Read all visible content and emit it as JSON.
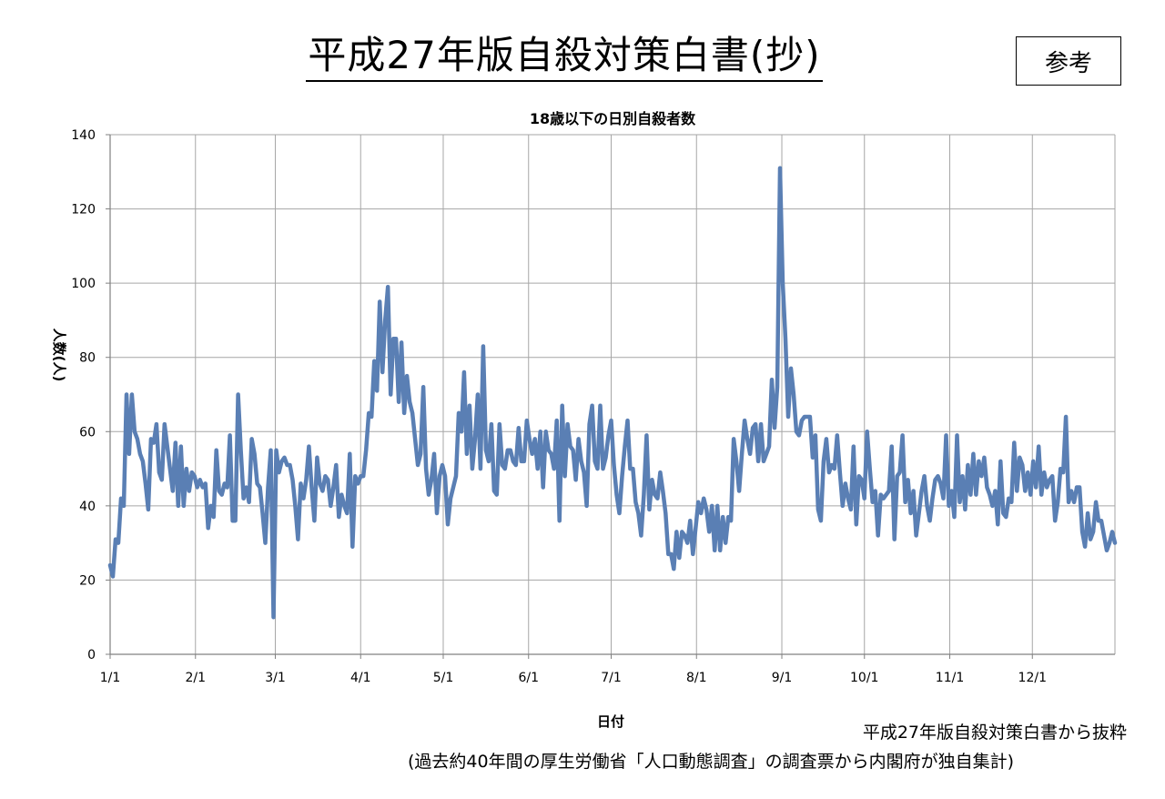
{
  "page": {
    "title": "平成27年版自殺対策白書(抄)",
    "badge": "参考",
    "source": "平成27年版自殺対策白書から抜粋",
    "note": "(過去約40年間の厚生労働省「人口動態調査」の調査票から内閣府が独自集計)"
  },
  "colors": {
    "line": "#5a7fb4",
    "grid": "#a6a6a6",
    "axis": "#808080"
  },
  "chart_data": {
    "type": "line",
    "title": "18歳以下の日別自殺者数",
    "xlabel": "日付",
    "ylabel": "人数(人)",
    "ylim": [
      0,
      140
    ],
    "xlim": [
      0,
      365
    ],
    "yticks": [
      0,
      20,
      40,
      60,
      80,
      100,
      120,
      140
    ],
    "xticks": [
      {
        "label": "1/1",
        "day": 0
      },
      {
        "label": "2/1",
        "day": 31
      },
      {
        "label": "3/1",
        "day": 60
      },
      {
        "label": "4/1",
        "day": 91
      },
      {
        "label": "5/1",
        "day": 121
      },
      {
        "label": "6/1",
        "day": 152
      },
      {
        "label": "7/1",
        "day": 182
      },
      {
        "label": "8/1",
        "day": 213
      },
      {
        "label": "9/1",
        "day": 244
      },
      {
        "label": "10/1",
        "day": 274
      },
      {
        "label": "11/1",
        "day": 305
      },
      {
        "label": "12/1",
        "day": 335
      }
    ],
    "grid": true,
    "legend": "none",
    "series": [
      {
        "values": [
          24,
          21,
          31,
          30,
          42,
          40,
          70,
          54,
          70,
          60,
          58,
          54,
          52,
          46,
          39,
          58,
          57,
          62,
          49,
          47,
          62,
          56,
          50,
          44,
          57,
          40,
          56,
          40,
          50,
          44,
          49,
          48,
          45,
          47,
          45,
          46,
          34,
          40,
          37,
          55,
          44,
          43,
          46,
          45,
          59,
          36,
          36,
          70,
          55,
          42,
          45,
          41,
          58,
          54,
          46,
          45,
          38,
          30,
          45,
          55,
          10,
          55,
          49,
          52,
          53,
          51,
          51,
          47,
          40,
          31,
          46,
          42,
          47,
          56,
          45,
          36,
          53,
          46,
          44,
          48,
          47,
          40,
          45,
          51,
          37,
          43,
          40,
          38,
          54,
          29,
          48,
          46,
          48,
          48,
          55,
          65,
          64,
          79,
          71,
          95,
          76,
          90,
          99,
          70,
          85,
          85,
          68,
          84,
          65,
          75,
          68,
          65,
          58,
          51,
          54,
          72,
          50,
          43,
          47,
          54,
          38,
          48,
          51,
          48,
          35,
          42,
          45,
          48,
          65,
          60,
          76,
          54,
          67,
          50,
          58,
          70,
          50,
          83,
          55,
          52,
          62,
          44,
          43,
          62,
          51,
          50,
          55,
          55,
          52,
          51,
          61,
          52,
          52,
          63,
          58,
          54,
          58,
          50,
          60,
          45,
          60,
          55,
          54,
          50,
          63,
          36,
          67,
          48,
          62,
          56,
          55,
          47,
          58,
          52,
          49,
          40,
          62,
          67,
          52,
          50,
          67,
          50,
          53,
          59,
          63,
          51,
          43,
          38,
          48,
          56,
          63,
          50,
          50,
          41,
          38,
          32,
          43,
          59,
          39,
          47,
          43,
          42,
          49,
          44,
          38,
          27,
          27,
          23,
          33,
          26,
          33,
          32,
          30,
          36,
          27,
          34,
          41,
          38,
          42,
          39,
          33,
          40,
          28,
          40,
          28,
          37,
          30,
          37,
          36,
          58,
          52,
          44,
          54,
          63,
          58,
          54,
          61,
          62,
          52,
          62,
          52,
          54,
          56,
          74,
          61,
          72,
          131,
          100,
          85,
          64,
          77,
          70,
          60,
          59,
          63,
          64,
          64,
          64,
          53,
          59,
          39,
          36,
          52,
          58,
          49,
          51,
          50,
          59,
          49,
          40,
          46,
          42,
          39,
          56,
          35,
          48,
          47,
          42,
          60,
          50,
          41,
          44,
          32,
          43,
          42,
          43,
          44,
          56,
          31,
          48,
          49,
          59,
          41,
          47,
          38,
          44,
          32,
          38,
          44,
          48,
          40,
          36,
          42,
          47,
          48,
          46,
          42,
          59,
          40,
          44,
          37,
          59,
          41,
          48,
          39,
          51,
          43,
          54,
          43,
          52,
          48,
          53,
          45,
          43,
          40,
          44,
          35,
          52,
          38,
          37,
          42,
          41,
          57,
          44,
          53,
          51,
          44,
          49,
          43,
          52,
          45,
          56,
          43,
          49,
          45,
          47,
          48,
          36,
          41,
          50,
          49,
          64,
          41,
          44,
          41,
          45,
          45,
          33,
          29,
          38,
          31,
          33,
          41,
          36,
          36,
          32,
          28,
          30,
          33,
          30
        ]
      }
    ]
  }
}
